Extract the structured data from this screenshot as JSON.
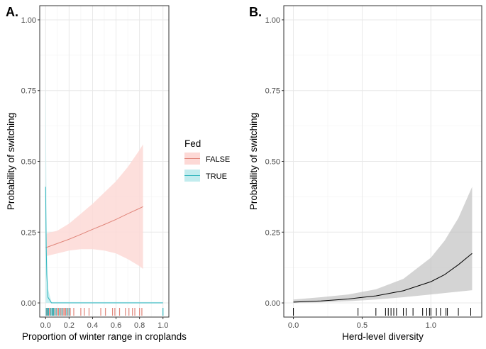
{
  "chart_data": [
    {
      "panel_label": "A.",
      "type": "line",
      "xlabel": "Proportion of winter range in croplands",
      "ylabel": "Probability of switching",
      "xlim": [
        -0.05,
        1.05
      ],
      "ylim": [
        -0.05,
        1.05
      ],
      "x_ticks": [
        "0.0",
        "0.2",
        "0.4",
        "0.6",
        "0.8",
        "1.0"
      ],
      "y_ticks": [
        "0.00",
        "0.25",
        "0.50",
        "0.75",
        "1.00"
      ],
      "grid": true,
      "legend": {
        "title": "Fed",
        "placement": "right",
        "entries": [
          {
            "label": "FALSE",
            "line_color": "#e0857a",
            "fill_color": "#fdd9d6"
          },
          {
            "label": "TRUE",
            "line_color": "#30b5bd",
            "fill_color": "#c2ecee"
          }
        ]
      },
      "series": [
        {
          "name": "FALSE",
          "x": [
            0.0,
            0.1,
            0.2,
            0.3,
            0.4,
            0.5,
            0.6,
            0.7,
            0.8,
            0.83
          ],
          "y": [
            0.195,
            0.21,
            0.225,
            0.242,
            0.26,
            0.277,
            0.295,
            0.315,
            0.334,
            0.34
          ],
          "lower": [
            0.165,
            0.175,
            0.185,
            0.19,
            0.19,
            0.185,
            0.175,
            0.155,
            0.13,
            0.12
          ],
          "upper": [
            0.245,
            0.255,
            0.28,
            0.315,
            0.35,
            0.39,
            0.43,
            0.48,
            0.54,
            0.56
          ]
        },
        {
          "name": "TRUE",
          "x": [
            0.0,
            0.005,
            0.01,
            0.02,
            0.05,
            1.0
          ],
          "y": [
            0.41,
            0.2,
            0.1,
            0.02,
            0.0,
            0.0
          ],
          "lower": [
            0.0,
            0.0,
            0.0,
            0.0,
            0.0,
            0.0
          ],
          "upper": [
            0.82,
            0.5,
            0.2,
            0.05,
            0.003,
            0.003
          ]
        }
      ],
      "rug": {
        "FALSE": [
          0.01,
          0.02,
          0.03,
          0.04,
          0.06,
          0.08,
          0.1,
          0.11,
          0.13,
          0.15,
          0.16,
          0.17,
          0.19,
          0.21,
          0.24,
          0.3,
          0.33,
          0.37,
          0.47,
          0.51,
          0.57,
          0.59,
          0.63,
          0.68,
          0.71,
          0.74,
          0.76,
          0.8,
          0.82
        ],
        "TRUE": [
          0.005,
          0.015,
          0.025,
          0.045,
          0.055,
          0.065,
          0.07,
          0.09,
          0.12,
          0.14,
          0.18,
          0.2,
          1.0
        ]
      }
    },
    {
      "panel_label": "B.",
      "type": "line",
      "xlabel": "Herd-level diversity",
      "ylabel": "Probability of switching",
      "xlim": [
        -0.07,
        1.37
      ],
      "ylim": [
        -0.05,
        1.05
      ],
      "x_ticks": [
        "0.0",
        "0.5",
        "1.0"
      ],
      "y_ticks": [
        "0.00",
        "0.25",
        "0.50",
        "0.75",
        "1.00"
      ],
      "grid": true,
      "series": [
        {
          "x": [
            0.0,
            0.2,
            0.4,
            0.6,
            0.8,
            1.0,
            1.1,
            1.2,
            1.3
          ],
          "y": [
            0.003,
            0.007,
            0.014,
            0.025,
            0.043,
            0.075,
            0.1,
            0.135,
            0.175
          ],
          "lower": [
            0.0,
            0.002,
            0.006,
            0.012,
            0.02,
            0.03,
            0.035,
            0.04,
            0.045
          ],
          "upper": [
            0.012,
            0.02,
            0.03,
            0.048,
            0.085,
            0.16,
            0.22,
            0.3,
            0.41
          ]
        }
      ],
      "rug": [
        0.0,
        0.47,
        0.6,
        0.67,
        0.69,
        0.71,
        0.73,
        0.75,
        0.8,
        0.82,
        0.87,
        0.94,
        0.97,
        0.99,
        1.0,
        1.04,
        1.07,
        1.11,
        1.12,
        1.2,
        1.29
      ]
    }
  ]
}
